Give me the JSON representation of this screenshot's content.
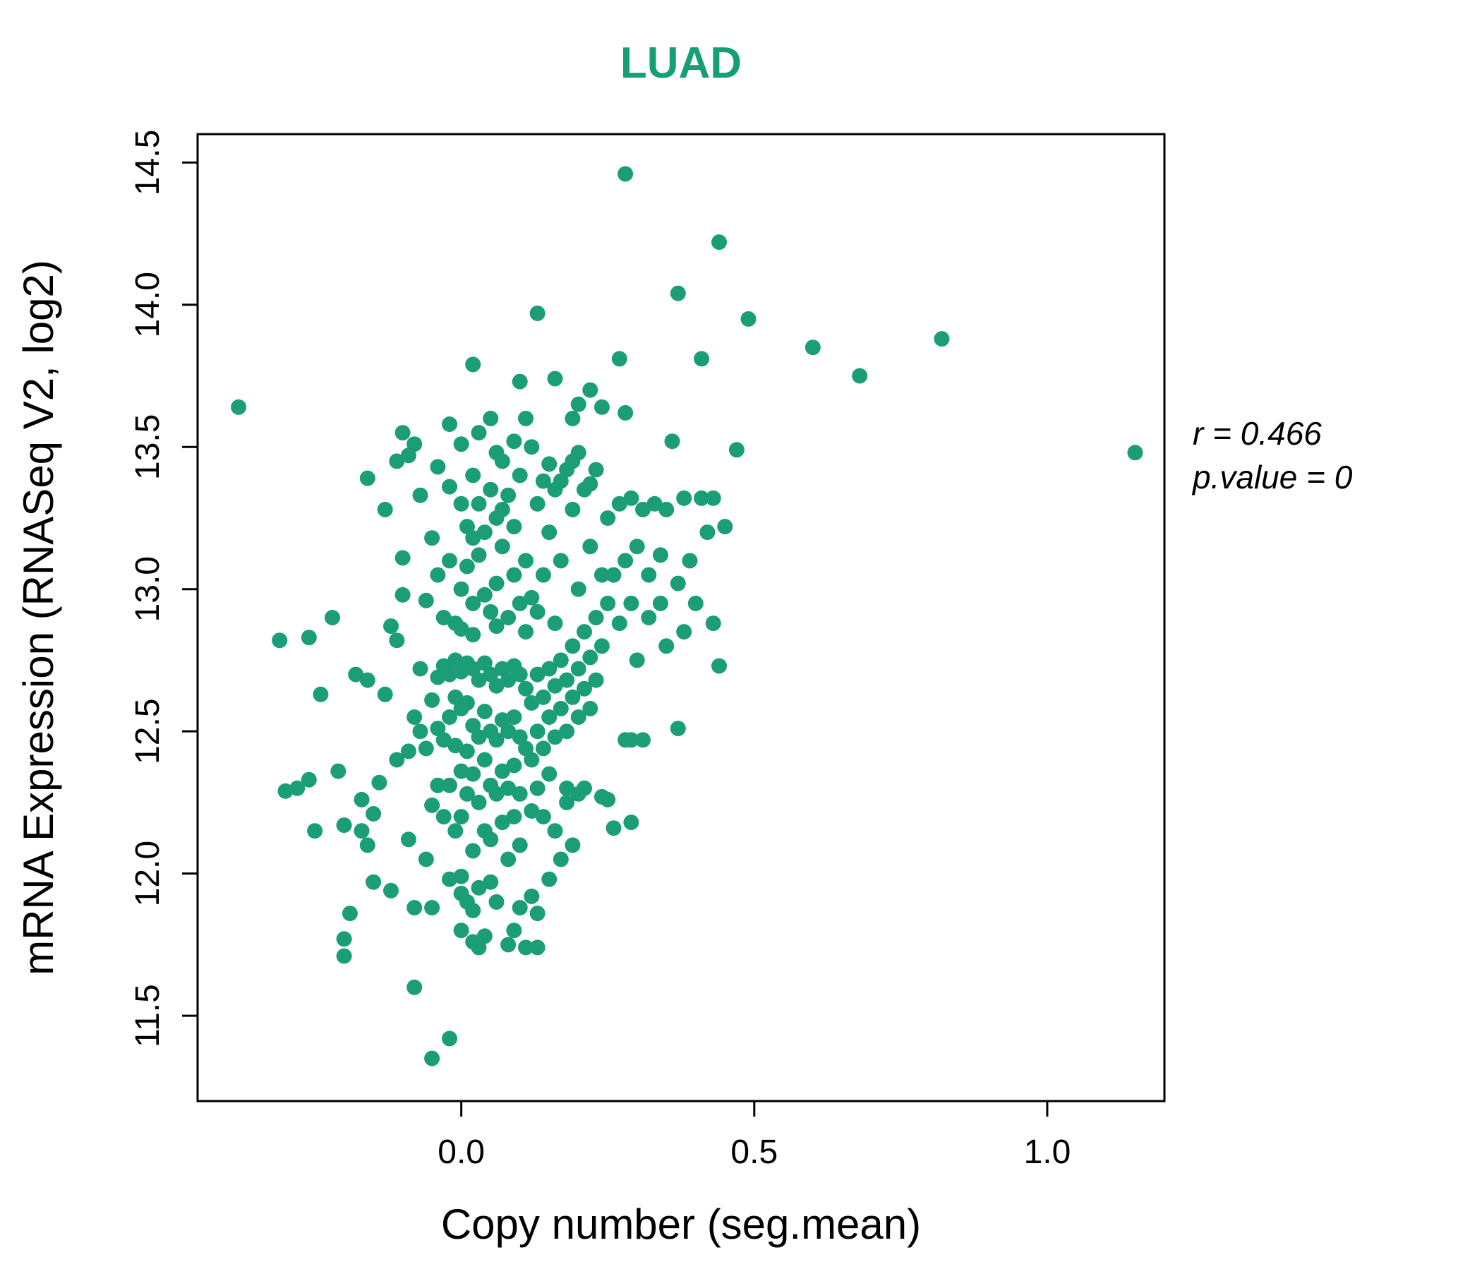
{
  "colors": {
    "point": "#1b9e77",
    "title": "#169e77",
    "axis": "#000000",
    "text": "#000000"
  },
  "annotation": {
    "line1": "r = 0.466",
    "line2": "p.value = 0"
  },
  "chart_data": {
    "type": "scatter",
    "title": "LUAD",
    "xlabel": "Copy number (seg.mean)",
    "ylabel": "mRNA Expression (RNASeq V2, log2)",
    "xlim": [
      -0.45,
      1.2
    ],
    "ylim": [
      11.2,
      14.6
    ],
    "xticks": [
      0.0,
      0.5,
      1.0
    ],
    "yticks": [
      11.5,
      12.0,
      12.5,
      13.0,
      13.5,
      14.0,
      14.5
    ],
    "grid": false,
    "legend": "none",
    "correlation_r": 0.466,
    "p_value": 0,
    "points": [
      [
        -0.38,
        13.64
      ],
      [
        1.15,
        13.48
      ],
      [
        0.28,
        14.46
      ],
      [
        0.44,
        14.22
      ],
      [
        0.37,
        14.04
      ],
      [
        0.13,
        13.97
      ],
      [
        0.49,
        13.95
      ],
      [
        0.82,
        13.88
      ],
      [
        0.6,
        13.85
      ],
      [
        0.68,
        13.75
      ],
      [
        0.27,
        13.81
      ],
      [
        0.41,
        13.81
      ],
      [
        0.16,
        13.74
      ],
      [
        0.02,
        13.79
      ],
      [
        0.47,
        13.49
      ],
      [
        0.36,
        13.52
      ],
      [
        -0.05,
        11.35
      ],
      [
        -0.02,
        11.42
      ],
      [
        -0.08,
        11.6
      ],
      [
        0.44,
        12.73
      ],
      [
        0.37,
        12.51
      ],
      [
        0.29,
        12.47
      ],
      [
        0.26,
        12.16
      ],
      [
        0.25,
        12.26
      ],
      [
        -0.31,
        12.82
      ],
      [
        -0.26,
        12.83
      ],
      [
        -0.22,
        12.9
      ],
      [
        -0.3,
        12.29
      ],
      [
        -0.28,
        12.3
      ],
      [
        -0.26,
        12.33
      ],
      [
        -0.25,
        12.15
      ],
      [
        -0.21,
        12.36
      ],
      [
        -0.2,
        12.17
      ],
      [
        -0.24,
        12.63
      ],
      [
        -0.19,
        11.86
      ],
      [
        -0.2,
        11.77
      ],
      [
        -0.2,
        11.71
      ],
      [
        -0.17,
        12.26
      ],
      [
        -0.16,
        12.1
      ],
      [
        -0.15,
        12.21
      ],
      [
        -0.15,
        11.97
      ],
      [
        -0.18,
        12.7
      ],
      [
        -0.16,
        12.68
      ],
      [
        -0.14,
        12.32
      ],
      [
        -0.13,
        12.63
      ],
      [
        -0.16,
        13.39
      ],
      [
        -0.13,
        13.28
      ],
      [
        -0.17,
        12.15
      ],
      [
        -0.12,
        12.87
      ],
      [
        -0.1,
        13.55
      ],
      [
        -0.11,
        13.45
      ],
      [
        -0.09,
        13.47
      ],
      [
        -0.1,
        13.11
      ],
      [
        -0.1,
        12.98
      ],
      [
        -0.11,
        12.82
      ],
      [
        -0.09,
        12.43
      ],
      [
        -0.11,
        12.4
      ],
      [
        -0.12,
        11.94
      ],
      [
        -0.08,
        11.88
      ],
      [
        -0.09,
        12.12
      ],
      [
        -0.08,
        12.55
      ],
      [
        -0.07,
        12.72
      ],
      [
        -0.07,
        12.5
      ],
      [
        -0.06,
        12.44
      ],
      [
        -0.05,
        12.61
      ],
      [
        -0.06,
        12.96
      ],
      [
        -0.05,
        13.18
      ],
      [
        -0.07,
        13.33
      ],
      [
        -0.08,
        13.51
      ],
      [
        -0.05,
        12.24
      ],
      [
        -0.06,
        12.05
      ],
      [
        -0.05,
        11.88
      ],
      [
        -0.04,
        12.69
      ],
      [
        -0.04,
        12.51
      ],
      [
        -0.04,
        12.31
      ],
      [
        -0.04,
        13.05
      ],
      [
        -0.03,
        12.73
      ],
      [
        -0.03,
        12.47
      ],
      [
        -0.03,
        12.9
      ],
      [
        -0.03,
        12.2
      ],
      [
        -0.02,
        12.7
      ],
      [
        -0.02,
        12.55
      ],
      [
        -0.02,
        12.31
      ],
      [
        -0.02,
        13.1
      ],
      [
        -0.02,
        11.98
      ],
      [
        -0.01,
        12.75
      ],
      [
        -0.01,
        12.62
      ],
      [
        -0.01,
        12.45
      ],
      [
        -0.01,
        12.88
      ],
      [
        -0.01,
        12.15
      ],
      [
        0.0,
        12.71
      ],
      [
        0.0,
        12.58
      ],
      [
        0.0,
        12.36
      ],
      [
        0.0,
        12.2
      ],
      [
        0.0,
        13.0
      ],
      [
        0.0,
        12.86
      ],
      [
        0.0,
        11.99
      ],
      [
        0.0,
        11.8
      ],
      [
        0.01,
        12.74
      ],
      [
        0.01,
        12.6
      ],
      [
        0.01,
        12.43
      ],
      [
        0.01,
        12.28
      ],
      [
        0.01,
        13.08
      ],
      [
        0.01,
        11.9
      ],
      [
        0.02,
        12.72
      ],
      [
        0.02,
        12.52
      ],
      [
        0.02,
        12.35
      ],
      [
        0.02,
        12.95
      ],
      [
        0.02,
        12.84
      ],
      [
        0.02,
        12.08
      ],
      [
        0.02,
        11.76
      ],
      [
        0.03,
        12.68
      ],
      [
        0.03,
        12.48
      ],
      [
        0.03,
        12.25
      ],
      [
        0.03,
        13.12
      ],
      [
        0.03,
        11.95
      ],
      [
        0.04,
        12.74
      ],
      [
        0.04,
        12.57
      ],
      [
        0.04,
        12.4
      ],
      [
        0.04,
        12.98
      ],
      [
        0.04,
        12.15
      ],
      [
        0.05,
        12.7
      ],
      [
        0.05,
        12.5
      ],
      [
        0.05,
        12.31
      ],
      [
        0.05,
        12.92
      ],
      [
        0.05,
        12.12
      ],
      [
        0.06,
        12.66
      ],
      [
        0.06,
        12.47
      ],
      [
        0.06,
        12.28
      ],
      [
        0.06,
        13.02
      ],
      [
        0.06,
        12.87
      ],
      [
        0.07,
        12.72
      ],
      [
        0.07,
        12.54
      ],
      [
        0.07,
        12.36
      ],
      [
        0.07,
        12.18
      ],
      [
        0.07,
        13.15
      ],
      [
        0.08,
        12.68
      ],
      [
        0.08,
        12.5
      ],
      [
        0.08,
        12.3
      ],
      [
        0.08,
        12.9
      ],
      [
        0.08,
        12.05
      ],
      [
        0.09,
        12.73
      ],
      [
        0.09,
        12.55
      ],
      [
        0.09,
        12.38
      ],
      [
        0.09,
        13.05
      ],
      [
        0.09,
        12.2
      ],
      [
        0.1,
        12.7
      ],
      [
        0.1,
        12.48
      ],
      [
        0.1,
        12.28
      ],
      [
        0.1,
        12.95
      ],
      [
        0.1,
        12.1
      ],
      [
        0.11,
        12.65
      ],
      [
        0.11,
        12.44
      ],
      [
        0.11,
        13.1
      ],
      [
        0.11,
        12.85
      ],
      [
        0.12,
        12.6
      ],
      [
        0.12,
        12.4
      ],
      [
        0.12,
        12.22
      ],
      [
        0.12,
        12.97
      ],
      [
        -0.04,
        13.43
      ],
      [
        -0.02,
        13.36
      ],
      [
        0.0,
        13.3
      ],
      [
        0.01,
        13.22
      ],
      [
        0.02,
        13.4
      ],
      [
        0.03,
        13.3
      ],
      [
        0.04,
        13.2
      ],
      [
        0.05,
        13.35
      ],
      [
        0.06,
        13.25
      ],
      [
        0.07,
        13.45
      ],
      [
        0.08,
        13.33
      ],
      [
        0.09,
        13.22
      ],
      [
        0.1,
        13.4
      ],
      [
        0.0,
        13.51
      ],
      [
        0.03,
        13.55
      ],
      [
        0.06,
        13.48
      ],
      [
        0.09,
        13.52
      ],
      [
        -0.02,
        13.58
      ],
      [
        0.05,
        13.6
      ],
      [
        0.12,
        13.5
      ],
      [
        0.02,
        13.18
      ],
      [
        0.07,
        13.28
      ],
      [
        0.0,
        11.93
      ],
      [
        0.02,
        11.87
      ],
      [
        0.04,
        11.78
      ],
      [
        0.06,
        11.9
      ],
      [
        0.08,
        11.75
      ],
      [
        0.03,
        11.74
      ],
      [
        0.1,
        11.88
      ],
      [
        0.12,
        11.92
      ],
      [
        0.05,
        11.97
      ],
      [
        0.09,
        11.8
      ],
      [
        0.11,
        11.74
      ],
      [
        0.13,
        11.86
      ],
      [
        0.13,
        12.7
      ],
      [
        0.13,
        12.5
      ],
      [
        0.13,
        12.3
      ],
      [
        0.13,
        12.92
      ],
      [
        0.14,
        12.62
      ],
      [
        0.14,
        12.44
      ],
      [
        0.14,
        13.05
      ],
      [
        0.15,
        12.72
      ],
      [
        0.15,
        12.55
      ],
      [
        0.15,
        12.35
      ],
      [
        0.15,
        13.2
      ],
      [
        0.16,
        12.66
      ],
      [
        0.16,
        12.48
      ],
      [
        0.16,
        12.88
      ],
      [
        0.17,
        12.75
      ],
      [
        0.17,
        12.58
      ],
      [
        0.17,
        13.1
      ],
      [
        0.18,
        12.68
      ],
      [
        0.18,
        12.5
      ],
      [
        0.18,
        12.3
      ],
      [
        0.19,
        12.8
      ],
      [
        0.19,
        12.62
      ],
      [
        0.19,
        13.28
      ],
      [
        0.2,
        12.72
      ],
      [
        0.2,
        12.55
      ],
      [
        0.2,
        13.0
      ],
      [
        0.21,
        12.85
      ],
      [
        0.21,
        12.65
      ],
      [
        0.21,
        13.35
      ],
      [
        0.22,
        12.76
      ],
      [
        0.22,
        12.58
      ],
      [
        0.22,
        13.15
      ],
      [
        0.23,
        12.9
      ],
      [
        0.23,
        12.68
      ],
      [
        0.23,
        13.42
      ],
      [
        0.24,
        12.8
      ],
      [
        0.24,
        13.05
      ],
      [
        0.25,
        12.95
      ],
      [
        0.25,
        13.25
      ],
      [
        0.14,
        13.38
      ],
      [
        0.16,
        13.35
      ],
      [
        0.18,
        13.42
      ],
      [
        0.2,
        13.48
      ],
      [
        0.13,
        13.3
      ],
      [
        0.17,
        13.38
      ],
      [
        0.19,
        13.45
      ],
      [
        0.22,
        13.37
      ],
      [
        0.15,
        13.44
      ],
      [
        0.14,
        12.2
      ],
      [
        0.16,
        12.15
      ],
      [
        0.18,
        12.25
      ],
      [
        0.2,
        12.28
      ],
      [
        0.15,
        11.98
      ],
      [
        0.17,
        12.05
      ],
      [
        0.13,
        11.74
      ],
      [
        0.19,
        12.1
      ],
      [
        0.21,
        12.3
      ],
      [
        0.24,
        12.27
      ],
      [
        0.28,
        12.47
      ],
      [
        0.29,
        12.18
      ],
      [
        0.31,
        12.47
      ],
      [
        0.26,
        13.05
      ],
      [
        0.27,
        12.88
      ],
      [
        0.27,
        13.3
      ],
      [
        0.28,
        13.1
      ],
      [
        0.29,
        12.95
      ],
      [
        0.29,
        13.32
      ],
      [
        0.3,
        13.15
      ],
      [
        0.3,
        12.75
      ],
      [
        0.31,
        13.28
      ],
      [
        0.32,
        13.05
      ],
      [
        0.32,
        12.9
      ],
      [
        0.33,
        13.3
      ],
      [
        0.34,
        13.12
      ],
      [
        0.34,
        12.95
      ],
      [
        0.35,
        13.28
      ],
      [
        0.35,
        12.8
      ],
      [
        0.37,
        13.02
      ],
      [
        0.38,
        13.32
      ],
      [
        0.38,
        12.85
      ],
      [
        0.39,
        13.1
      ],
      [
        0.4,
        12.95
      ],
      [
        0.41,
        13.32
      ],
      [
        0.42,
        13.2
      ],
      [
        0.43,
        12.88
      ],
      [
        0.45,
        13.22
      ],
      [
        0.43,
        13.32
      ],
      [
        0.22,
        13.7
      ],
      [
        0.24,
        13.64
      ],
      [
        0.2,
        13.65
      ],
      [
        0.28,
        13.62
      ],
      [
        0.11,
        13.6
      ],
      [
        0.19,
        13.6
      ],
      [
        0.1,
        13.73
      ]
    ]
  }
}
